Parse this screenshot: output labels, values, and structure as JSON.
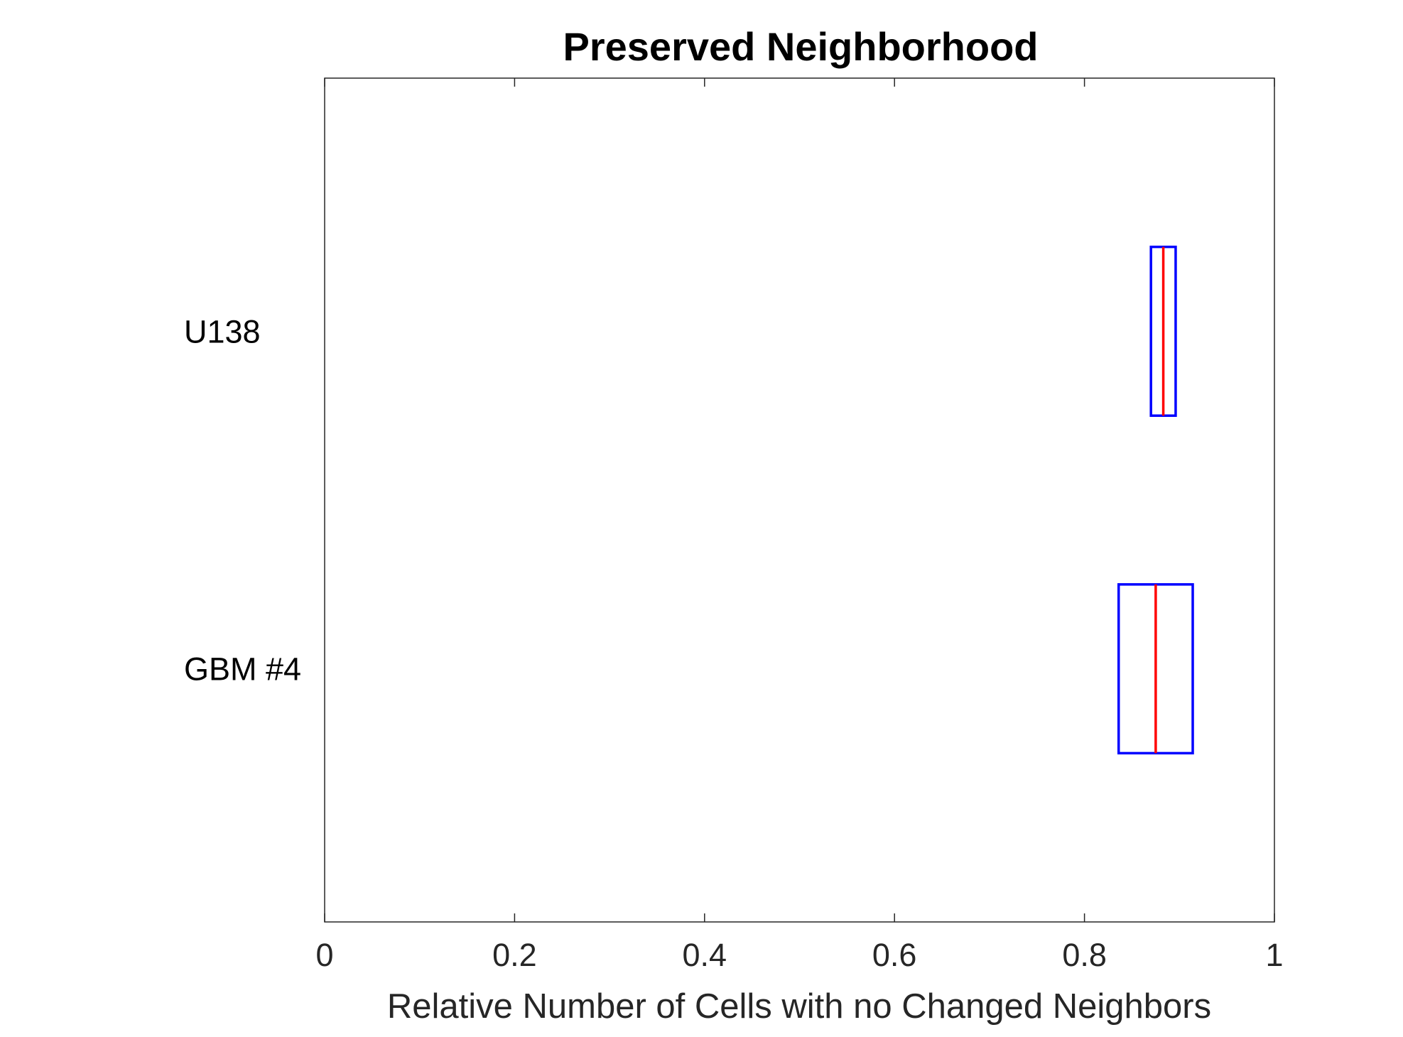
{
  "chart_data": {
    "type": "box",
    "orientation": "horizontal",
    "title": "Preserved Neighborhood",
    "xlabel": "Relative Number of Cells with no Changed Neighbors",
    "ylabel": "",
    "xlim": [
      0,
      1
    ],
    "xticks": [
      0,
      0.2,
      0.4,
      0.6,
      0.8,
      1
    ],
    "xtick_labels": [
      "0",
      "0.2",
      "0.4",
      "0.6",
      "0.8",
      "1"
    ],
    "grid": false,
    "box_color": "#0000ff",
    "median_color": "#ff0000",
    "categories": [
      {
        "label": "U138",
        "q1": 0.87,
        "median": 0.883,
        "q3": 0.896
      },
      {
        "label": "GBM #4",
        "q1": 0.836,
        "median": 0.875,
        "q3": 0.914
      }
    ]
  }
}
